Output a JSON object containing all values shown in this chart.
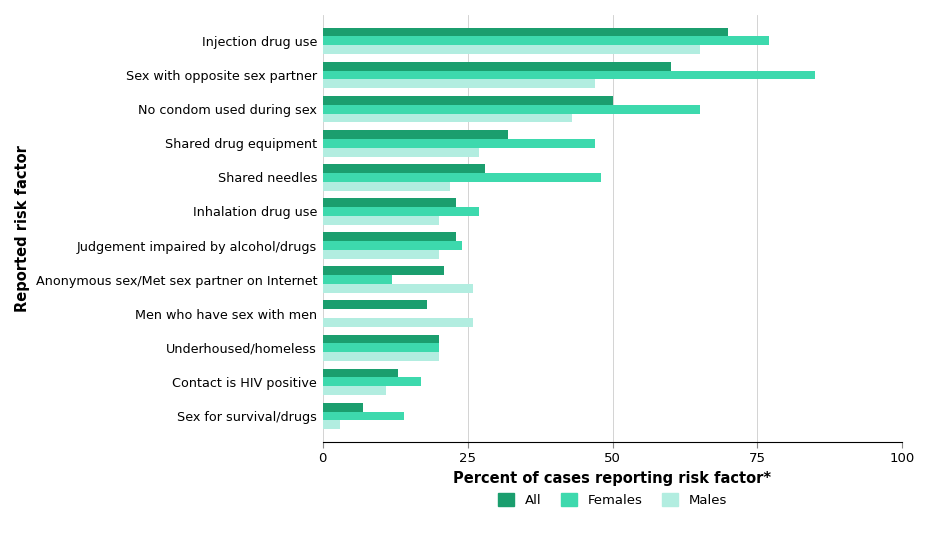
{
  "categories": [
    "Sex for survival/drugs",
    "Contact is HIV positive",
    "Underhoused/homeless",
    "Men who have sex with men",
    "Anonymous sex/Met sex partner on Internet",
    "Judgement impaired by alcohol/drugs",
    "Inhalation drug use",
    "Shared needles",
    "Shared drug equipment",
    "No condom used during sex",
    "Sex with opposite sex partner",
    "Injection drug use"
  ],
  "all_values": [
    7,
    13,
    20,
    18,
    21,
    23,
    23,
    28,
    32,
    50,
    60,
    70
  ],
  "females_values": [
    14,
    17,
    20,
    0,
    12,
    24,
    27,
    48,
    47,
    65,
    85,
    77
  ],
  "males_values": [
    3,
    11,
    20,
    26,
    26,
    20,
    20,
    22,
    27,
    43,
    47,
    65
  ],
  "color_all": "#1b9e6e",
  "color_females": "#3dd9ad",
  "color_males": "#b2ede0",
  "xlabel": "Percent of cases reporting risk factor*",
  "ylabel": "Reported risk factor",
  "xlim": [
    0,
    100
  ],
  "xticks": [
    0,
    25,
    50,
    75,
    100
  ],
  "legend_labels": [
    "All",
    "Females",
    "Males"
  ],
  "bar_height": 0.26,
  "figsize": [
    9.3,
    5.55
  ],
  "dpi": 100
}
